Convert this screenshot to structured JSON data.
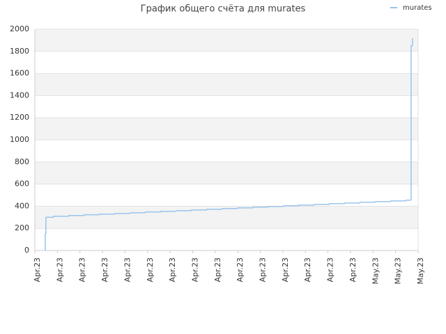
{
  "chart_data": {
    "type": "line",
    "title": "График общего счёта для murates",
    "step": true,
    "grid": true,
    "bands": true,
    "legend": "top-right",
    "xlim": [
      0,
      17
    ],
    "xticks": [
      {
        "value": 0,
        "label": "Apr.23"
      },
      {
        "value": 1,
        "label": "Apr.23"
      },
      {
        "value": 2,
        "label": "Apr.23"
      },
      {
        "value": 3,
        "label": "Apr.23"
      },
      {
        "value": 4,
        "label": "Apr.23"
      },
      {
        "value": 5,
        "label": "Apr.23"
      },
      {
        "value": 6,
        "label": "Apr.23"
      },
      {
        "value": 7,
        "label": "Apr.23"
      },
      {
        "value": 8,
        "label": "Apr.23"
      },
      {
        "value": 9,
        "label": "Apr.23"
      },
      {
        "value": 10,
        "label": "Apr.23"
      },
      {
        "value": 11,
        "label": "Apr.23"
      },
      {
        "value": 12,
        "label": "Apr.23"
      },
      {
        "value": 13,
        "label": "Apr.23"
      },
      {
        "value": 14,
        "label": "Apr.23"
      },
      {
        "value": 15,
        "label": "May.23"
      },
      {
        "value": 16,
        "label": "May.23"
      },
      {
        "value": 17,
        "label": "May.23"
      }
    ],
    "ylim": [
      0,
      2000
    ],
    "yticks": [
      0,
      200,
      400,
      600,
      800,
      1000,
      1200,
      1400,
      1600,
      1800,
      2000
    ],
    "x": [
      0.46,
      0.46,
      0.49,
      0.83,
      1.51,
      2.19,
      2.87,
      3.55,
      4.23,
      4.91,
      5.59,
      6.27,
      6.95,
      7.63,
      8.31,
      8.99,
      9.67,
      10.35,
      11.03,
      11.71,
      12.39,
      13.07,
      13.75,
      14.43,
      15.11,
      15.79,
      16.47,
      16.69,
      16.75
    ],
    "series": [
      {
        "name": "murates",
        "color": "#99c4ee",
        "values": [
          0,
          150,
          300,
          310,
          316,
          323,
          329,
          335,
          341,
          348,
          354,
          360,
          366,
          373,
          379,
          385,
          392,
          398,
          404,
          410,
          417,
          423,
          429,
          436,
          442,
          448,
          455,
          1850,
          1920
        ]
      }
    ]
  }
}
